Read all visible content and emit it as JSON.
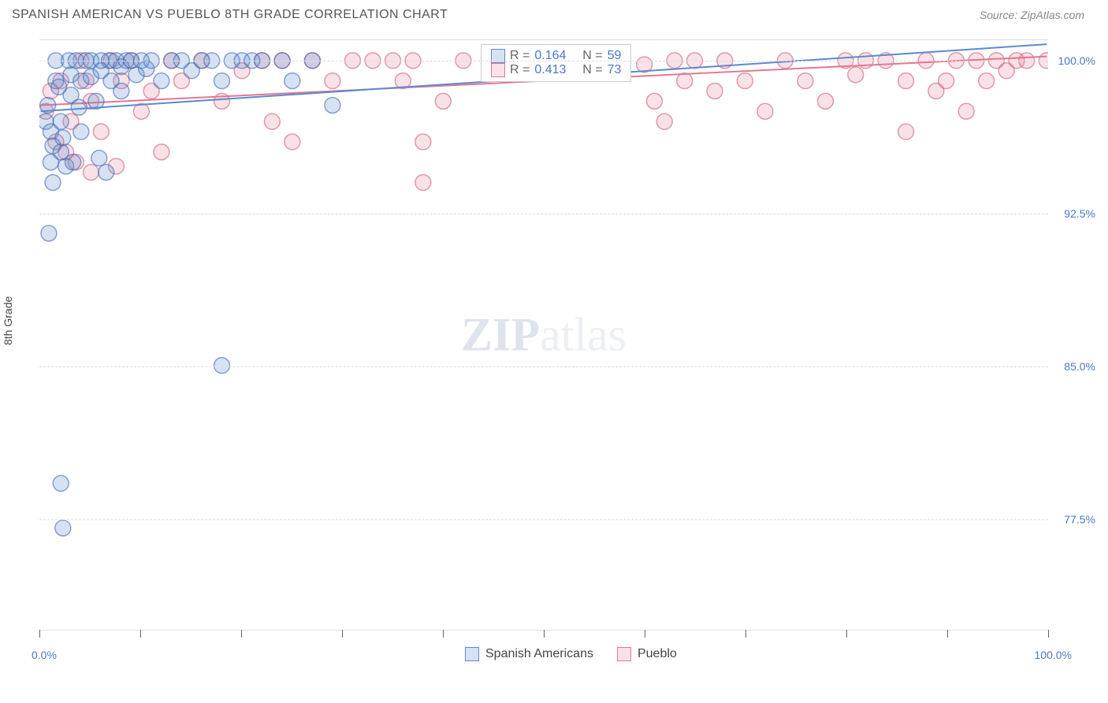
{
  "header": {
    "title": "SPANISH AMERICAN VS PUEBLO 8TH GRADE CORRELATION CHART",
    "source": "Source: ZipAtlas.com"
  },
  "watermark": {
    "zip": "ZIP",
    "atlas": "atlas"
  },
  "chart": {
    "type": "scatter-correlation",
    "ylabel": "8th Grade",
    "background_color": "#ffffff",
    "grid_color": "#dddddd",
    "grid_dash": true,
    "xlim": [
      0,
      100
    ],
    "ylim": [
      72,
      101
    ],
    "ytick_values": [
      77.5,
      85.0,
      92.5,
      100.0
    ],
    "ytick_labels": [
      "77.5%",
      "85.0%",
      "92.5%",
      "100.0%"
    ],
    "xtick_values": [
      0,
      10,
      20,
      30,
      40,
      50,
      60,
      70,
      80,
      90,
      100
    ],
    "xtick_labels": {
      "start": "0.0%",
      "end": "100.0%"
    },
    "axis_label_color": "#4878c8",
    "axis_label_fontsize": 14,
    "marker_radius": 10,
    "marker_fill_opacity": 0.25,
    "marker_stroke_opacity": 0.6,
    "marker_stroke_width": 1.5,
    "trend_line_width": 2,
    "series": {
      "spanish": {
        "label": "Spanish Americans",
        "color": "#5b8ad0",
        "fill_rgba": "rgba(91,138,208,0.25)",
        "stroke_rgba": "rgba(63,103,178,0.6)",
        "R": "0.164",
        "N": "59",
        "trend": {
          "y_at_x0": 97.5,
          "y_at_x100": 100.8
        },
        "points": [
          [
            0.5,
            97.0
          ],
          [
            0.7,
            97.8
          ],
          [
            1.0,
            96.5
          ],
          [
            1.0,
            95.0
          ],
          [
            1.2,
            95.8
          ],
          [
            1.5,
            99.0
          ],
          [
            1.5,
            100.0
          ],
          [
            1.8,
            98.7
          ],
          [
            2.0,
            97.0
          ],
          [
            2.0,
            95.5
          ],
          [
            2.2,
            96.2
          ],
          [
            2.5,
            94.8
          ],
          [
            2.8,
            100.0
          ],
          [
            3.0,
            99.3
          ],
          [
            3.0,
            98.3
          ],
          [
            3.2,
            95.0
          ],
          [
            3.5,
            100.0
          ],
          [
            3.8,
            97.7
          ],
          [
            4.0,
            99.0
          ],
          [
            4.0,
            96.5
          ],
          [
            4.5,
            100.0
          ],
          [
            5.0,
            99.2
          ],
          [
            5.0,
            100.0
          ],
          [
            5.5,
            98.0
          ],
          [
            5.8,
            95.2
          ],
          [
            6.0,
            99.5
          ],
          [
            6.0,
            100.0
          ],
          [
            6.5,
            94.5
          ],
          [
            6.8,
            100.0
          ],
          [
            7.0,
            99.0
          ],
          [
            7.5,
            100.0
          ],
          [
            8.0,
            98.5
          ],
          [
            8.0,
            99.7
          ],
          [
            8.5,
            100.0
          ],
          [
            9.0,
            100.0
          ],
          [
            9.5,
            99.3
          ],
          [
            10.0,
            100.0
          ],
          [
            10.5,
            99.6
          ],
          [
            11.0,
            100.0
          ],
          [
            12.0,
            99.0
          ],
          [
            13.0,
            100.0
          ],
          [
            14.0,
            100.0
          ],
          [
            15.0,
            99.5
          ],
          [
            16.0,
            100.0
          ],
          [
            17.0,
            100.0
          ],
          [
            18.0,
            99.0
          ],
          [
            19.0,
            100.0
          ],
          [
            20.0,
            100.0
          ],
          [
            21.0,
            100.0
          ],
          [
            22.0,
            100.0
          ],
          [
            24.0,
            100.0
          ],
          [
            25.0,
            99.0
          ],
          [
            27.0,
            100.0
          ],
          [
            29.0,
            97.8
          ],
          [
            0.8,
            91.5
          ],
          [
            2.0,
            79.2
          ],
          [
            2.2,
            77.0
          ],
          [
            1.2,
            94.0
          ],
          [
            18.0,
            85.0
          ]
        ]
      },
      "pueblo": {
        "label": "Pueblo",
        "color": "#e07890",
        "fill_rgba": "rgba(224,120,144,0.22)",
        "stroke_rgba": "rgba(206,78,108,0.55)",
        "R": "0.413",
        "N": "73",
        "trend": {
          "y_at_x0": 97.8,
          "y_at_x100": 100.2
        },
        "points": [
          [
            0.5,
            97.5
          ],
          [
            1.0,
            98.5
          ],
          [
            1.5,
            96.0
          ],
          [
            2.0,
            99.0
          ],
          [
            2.5,
            95.5
          ],
          [
            3.0,
            97.0
          ],
          [
            3.5,
            95.0
          ],
          [
            4.0,
            100.0
          ],
          [
            4.5,
            99.0
          ],
          [
            5.0,
            98.0
          ],
          [
            5.0,
            94.5
          ],
          [
            6.0,
            96.5
          ],
          [
            7.0,
            100.0
          ],
          [
            7.5,
            94.8
          ],
          [
            8.0,
            99.0
          ],
          [
            9.0,
            100.0
          ],
          [
            10.0,
            97.5
          ],
          [
            11.0,
            98.5
          ],
          [
            12.0,
            95.5
          ],
          [
            13.0,
            100.0
          ],
          [
            14.0,
            99.0
          ],
          [
            16.0,
            100.0
          ],
          [
            18.0,
            98.0
          ],
          [
            20.0,
            99.5
          ],
          [
            22.0,
            100.0
          ],
          [
            24.0,
            100.0
          ],
          [
            23.0,
            97.0
          ],
          [
            25.0,
            96.0
          ],
          [
            27.0,
            100.0
          ],
          [
            29.0,
            99.0
          ],
          [
            31.0,
            100.0
          ],
          [
            33.0,
            100.0
          ],
          [
            35.0,
            100.0
          ],
          [
            37.0,
            100.0
          ],
          [
            36.0,
            99.0
          ],
          [
            38.0,
            96.0
          ],
          [
            40.0,
            98.0
          ],
          [
            38.0,
            94.0
          ],
          [
            42.0,
            100.0
          ],
          [
            48.0,
            100.0
          ],
          [
            52.0,
            99.5
          ],
          [
            55.0,
            100.0
          ],
          [
            60.0,
            99.8
          ],
          [
            61.0,
            98.0
          ],
          [
            62.0,
            97.0
          ],
          [
            63.0,
            100.0
          ],
          [
            64.0,
            99.0
          ],
          [
            65.0,
            100.0
          ],
          [
            67.0,
            98.5
          ],
          [
            68.0,
            100.0
          ],
          [
            70.0,
            99.0
          ],
          [
            72.0,
            97.5
          ],
          [
            74.0,
            100.0
          ],
          [
            76.0,
            99.0
          ],
          [
            78.0,
            98.0
          ],
          [
            80.0,
            100.0
          ],
          [
            81.0,
            99.3
          ],
          [
            82.0,
            100.0
          ],
          [
            84.0,
            100.0
          ],
          [
            86.0,
            99.0
          ],
          [
            86.0,
            96.5
          ],
          [
            88.0,
            100.0
          ],
          [
            89.0,
            98.5
          ],
          [
            90.0,
            99.0
          ],
          [
            91.0,
            100.0
          ],
          [
            92.0,
            97.5
          ],
          [
            93.0,
            100.0
          ],
          [
            94.0,
            99.0
          ],
          [
            95.0,
            100.0
          ],
          [
            96.0,
            99.5
          ],
          [
            97.0,
            100.0
          ],
          [
            98.0,
            100.0
          ],
          [
            100.0,
            100.0
          ]
        ]
      }
    }
  },
  "legend_top": {
    "r_label": "R =",
    "n_label": "N ="
  }
}
